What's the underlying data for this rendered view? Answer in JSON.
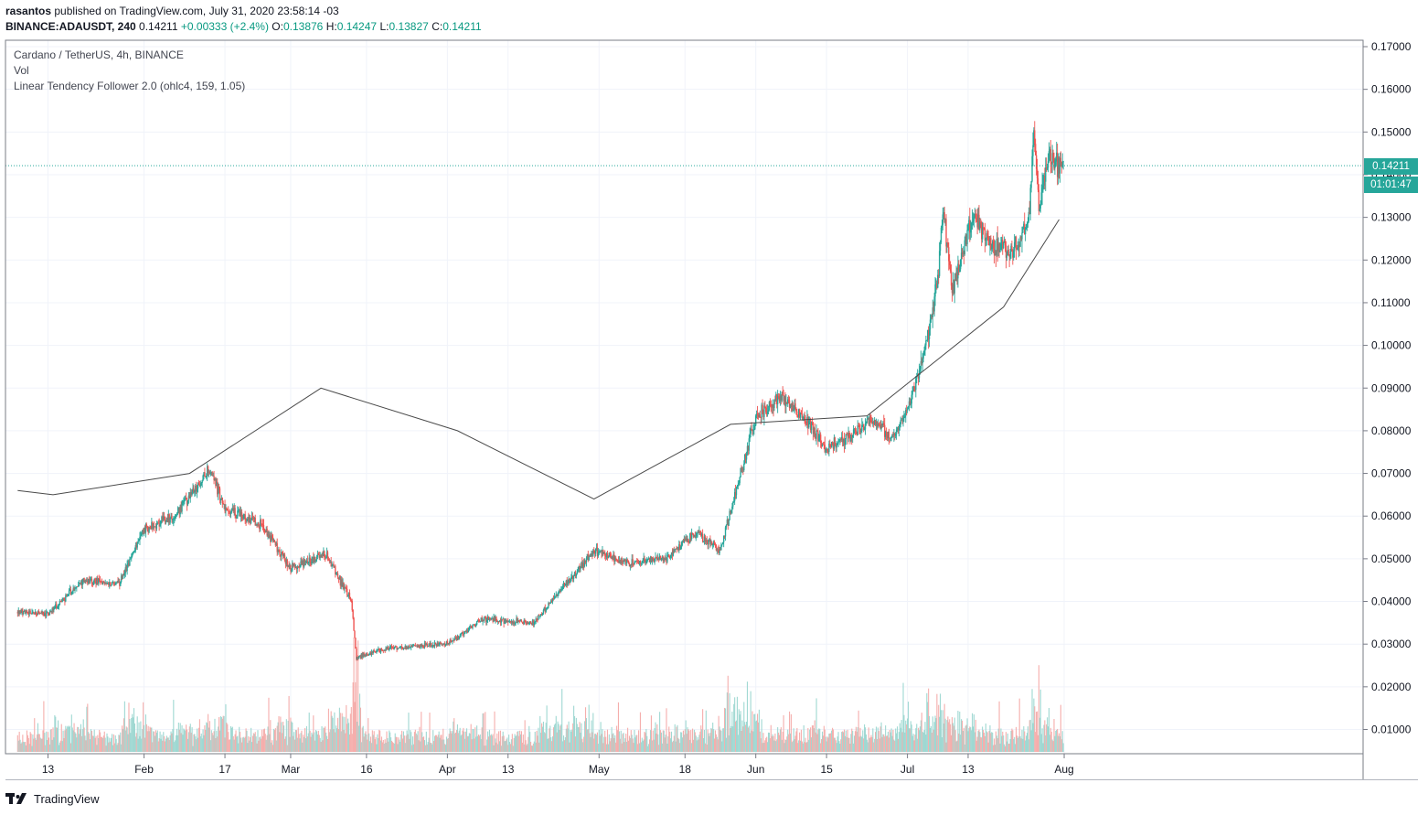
{
  "header": {
    "author": "rasantos",
    "published_text": "published on TradingView.com, July 31, 2020 23:58:14 -03",
    "symbol_line": "BINANCE:ADAUSDT, 240",
    "last": "0.14211",
    "change": "+0.00333 (+2.4%)",
    "o_label": "O:",
    "o_value": "0.13876",
    "h_label": "H:",
    "h_value": "0.14247",
    "l_label": "L:",
    "l_value": "0.13827",
    "c_label": "C:",
    "c_value": "0.14211"
  },
  "legend": {
    "line1": "Cardano / TetherUS, 4h, BINANCE",
    "line2": "Vol",
    "line3": "Linear Tendency Follower 2.0 (ohlc4, 159, 1.05)"
  },
  "price_tag": {
    "price": "0.14211",
    "countdown": "01:01:47"
  },
  "brand": {
    "name": "TradingView"
  },
  "colors": {
    "up": "#26a69a",
    "down": "#ef5350",
    "line": "#4a4a4a",
    "grid": "#f0f3fa",
    "axis": "#787b86"
  },
  "chart_data": {
    "type": "candlestick",
    "symbol": "ADAUSDT",
    "interval": "4h",
    "ylim": [
      0.0,
      0.17
    ],
    "y_ticks": [
      "0.01000",
      "0.02000",
      "0.03000",
      "0.04000",
      "0.05000",
      "0.06000",
      "0.07000",
      "0.08000",
      "0.09000",
      "0.10000",
      "0.11000",
      "0.12000",
      "0.13000",
      "0.14000",
      "0.15000",
      "0.16000",
      "0.17000"
    ],
    "x_ticks": [
      "13",
      "Feb",
      "17",
      "Mar",
      "16",
      "Apr",
      "13",
      "May",
      "18",
      "Jun",
      "15",
      "Jul",
      "13",
      "Aug"
    ],
    "last_price": 0.14211,
    "price_path": [
      {
        "t": "Jan 7",
        "p": 0.0375
      },
      {
        "t": "Jan 13",
        "p": 0.037
      },
      {
        "t": "Jan 20",
        "p": 0.045
      },
      {
        "t": "Jan 27",
        "p": 0.044
      },
      {
        "t": "Feb 1",
        "p": 0.057
      },
      {
        "t": "Feb 7",
        "p": 0.06
      },
      {
        "t": "Feb 14",
        "p": 0.071
      },
      {
        "t": "Feb 17",
        "p": 0.062
      },
      {
        "t": "Feb 24",
        "p": 0.058
      },
      {
        "t": "Mar 1",
        "p": 0.048
      },
      {
        "t": "Mar 8",
        "p": 0.051
      },
      {
        "t": "Mar 13",
        "p": 0.04
      },
      {
        "t": "Mar 14",
        "p": 0.027
      },
      {
        "t": "Mar 20",
        "p": 0.029
      },
      {
        "t": "Apr 1",
        "p": 0.03
      },
      {
        "t": "Apr 8",
        "p": 0.036
      },
      {
        "t": "Apr 18",
        "p": 0.035
      },
      {
        "t": "Apr 23",
        "p": 0.042
      },
      {
        "t": "Apr 30",
        "p": 0.052
      },
      {
        "t": "May 7",
        "p": 0.049
      },
      {
        "t": "May 14",
        "p": 0.05
      },
      {
        "t": "May 20",
        "p": 0.056
      },
      {
        "t": "May 25",
        "p": 0.052
      },
      {
        "t": "May 28",
        "p": 0.066
      },
      {
        "t": "Jun 1",
        "p": 0.083
      },
      {
        "t": "Jun 6",
        "p": 0.088
      },
      {
        "t": "Jun 11",
        "p": 0.083
      },
      {
        "t": "Jun 15",
        "p": 0.076
      },
      {
        "t": "Jun 20",
        "p": 0.079
      },
      {
        "t": "Jun 24",
        "p": 0.083
      },
      {
        "t": "Jun 28",
        "p": 0.078
      },
      {
        "t": "Jul 1",
        "p": 0.085
      },
      {
        "t": "Jul 4",
        "p": 0.096
      },
      {
        "t": "Jul 7",
        "p": 0.115
      },
      {
        "t": "Jul 8",
        "p": 0.132
      },
      {
        "t": "Jul 10",
        "p": 0.113
      },
      {
        "t": "Jul 14",
        "p": 0.131
      },
      {
        "t": "Jul 17",
        "p": 0.124
      },
      {
        "t": "Jul 22",
        "p": 0.122
      },
      {
        "t": "Jul 25",
        "p": 0.13
      },
      {
        "t": "Jul 26",
        "p": 0.151
      },
      {
        "t": "Jul 27",
        "p": 0.132
      },
      {
        "t": "Jul 29",
        "p": 0.145
      },
      {
        "t": "Jul 31",
        "p": 0.1421
      }
    ],
    "indicator": {
      "name": "Linear Tendency Follower 2.0",
      "points": [
        {
          "t": "Jan 7",
          "p": 0.066
        },
        {
          "t": "Jan 14",
          "p": 0.065
        },
        {
          "t": "Feb 10",
          "p": 0.07
        },
        {
          "t": "Mar 7",
          "p": 0.09
        },
        {
          "t": "Apr 3",
          "p": 0.08
        },
        {
          "t": "Apr 30",
          "p": 0.064
        },
        {
          "t": "May 27",
          "p": 0.0815
        },
        {
          "t": "Jun 23",
          "p": 0.0835
        },
        {
          "t": "Jul 20",
          "p": 0.109
        },
        {
          "t": "Jul 31",
          "p": 0.1295
        }
      ]
    }
  }
}
